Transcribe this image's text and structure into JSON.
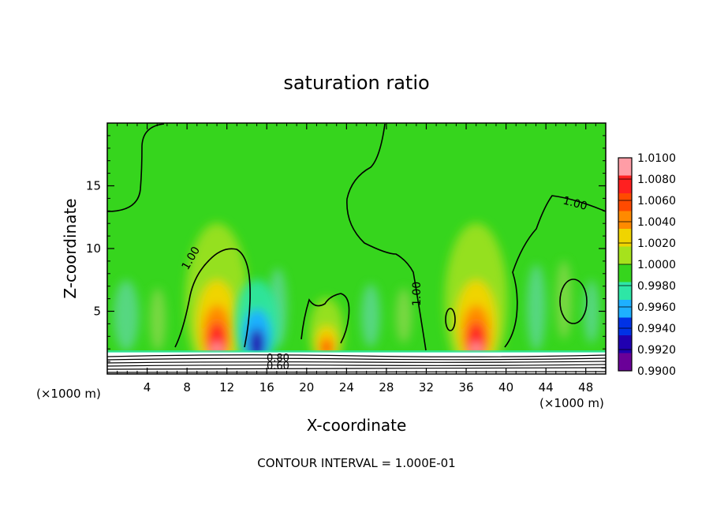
{
  "chart_data": {
    "type": "heatmap",
    "title": "saturation ratio",
    "xlabel": "X-coordinate",
    "ylabel": "Z-coordinate",
    "x_unit": "(×1000 m)",
    "footer": "CONTOUR INTERVAL = 1.000E-01",
    "xlim": [
      0,
      50
    ],
    "ylim": [
      0,
      20
    ],
    "x_ticks": [
      4,
      8,
      12,
      16,
      20,
      24,
      28,
      32,
      36,
      40,
      44,
      48
    ],
    "y_ticks": [
      5,
      10,
      15
    ],
    "background_value": 1.0,
    "colorbar": {
      "levels": [
        "1.0100",
        "1.0080",
        "1.0060",
        "1.0040",
        "1.0020",
        "1.0000",
        "0.9980",
        "0.9960",
        "0.9940",
        "0.9920",
        "0.9900"
      ],
      "colors": [
        "#ff9da6",
        "#ff2020",
        "#ff4a00",
        "#ff8a00",
        "#f0d400",
        "#a6e21c",
        "#36d51d",
        "#2ee6a6",
        "#1eb0ff",
        "#0032e6",
        "#2000b0",
        "#6a0098"
      ]
    },
    "contour_labels": [
      "1.00",
      "1.00",
      "1.00",
      "0.80",
      "0.60"
    ],
    "features": [
      {
        "kind": "plume",
        "x": 11,
        "z": 2.6,
        "value": 1.008
      },
      {
        "kind": "plume",
        "x": 37,
        "z": 2.6,
        "value": 1.008
      },
      {
        "kind": "plume",
        "x": 22,
        "z": 2.0,
        "value": 1.006
      },
      {
        "kind": "trough",
        "x": 15,
        "z": 2.5,
        "value": 0.992
      }
    ]
  }
}
